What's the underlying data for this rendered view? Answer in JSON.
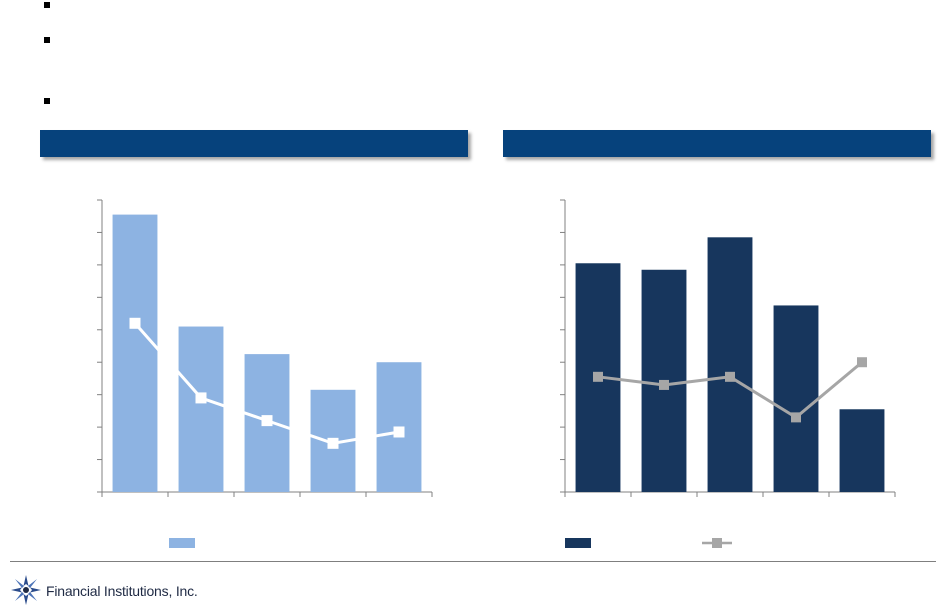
{
  "footer": {
    "company": "Financial Institutions, Inc."
  },
  "colors": {
    "header": "#06427c",
    "left_bar": "#8db3e2",
    "left_line": "#ffffff",
    "right_bar": "#17365d",
    "right_line": "#a6a6a6"
  },
  "chart_data": [
    {
      "type": "bar",
      "categories": [
        "",
        "",
        "",
        "",
        ""
      ],
      "ylim": [
        0,
        9
      ],
      "yticks": 9,
      "series": [
        {
          "kind": "bar",
          "values": [
            8.55,
            5.1,
            4.25,
            3.15,
            4.0
          ]
        },
        {
          "kind": "line",
          "values": [
            5.2,
            2.9,
            2.2,
            1.5,
            1.85
          ]
        }
      ]
    },
    {
      "type": "bar",
      "categories": [
        "",
        "",
        "",
        "",
        ""
      ],
      "ylim": [
        0,
        9
      ],
      "yticks": 9,
      "series": [
        {
          "kind": "bar",
          "values": [
            7.05,
            6.85,
            7.85,
            5.75,
            2.55
          ]
        },
        {
          "kind": "line",
          "values": [
            3.55,
            3.3,
            3.55,
            2.3,
            4.0
          ]
        }
      ]
    }
  ]
}
